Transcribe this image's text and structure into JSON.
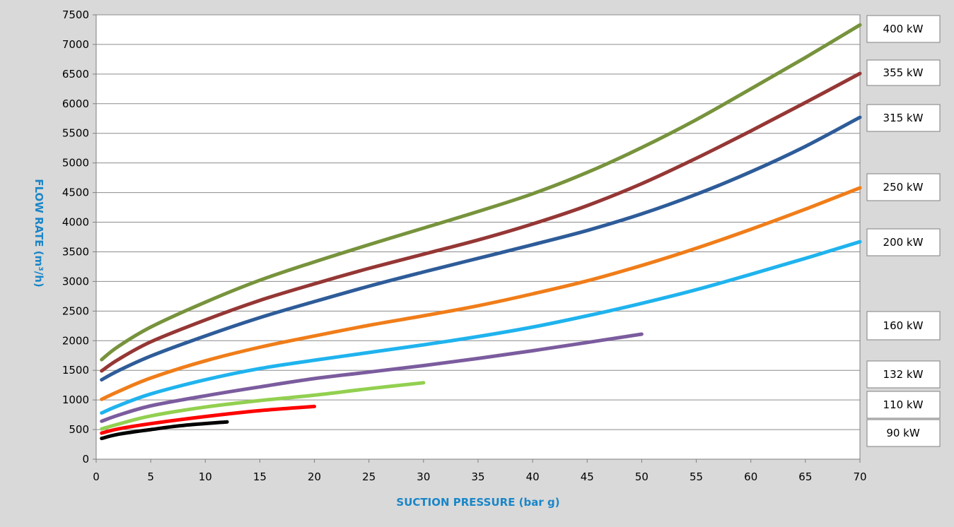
{
  "chart_data": {
    "type": "line",
    "title": "",
    "xlabel": "SUCTION PRESSURE (bar g)",
    "ylabel": "FLOW RATE (m³/h)",
    "xlim": [
      0,
      70
    ],
    "ylim": [
      0,
      7500
    ],
    "xticks": [
      0,
      5,
      10,
      15,
      20,
      25,
      30,
      35,
      40,
      45,
      50,
      55,
      60,
      65,
      70
    ],
    "yticks": [
      0,
      500,
      1000,
      1500,
      2000,
      2500,
      3000,
      3500,
      4000,
      4500,
      5000,
      5500,
      6000,
      6500,
      7000,
      7500
    ],
    "grid": "horizontal",
    "legend_position": "right",
    "series": [
      {
        "name": "400 kW",
        "color": "#77933c",
        "x": [
          0.5,
          2,
          5,
          10,
          15,
          20,
          25,
          30,
          35,
          40,
          45,
          50,
          55,
          60,
          65,
          70
        ],
        "y": [
          1680,
          1900,
          2230,
          2650,
          3020,
          3330,
          3620,
          3900,
          4180,
          4480,
          4840,
          5260,
          5730,
          6250,
          6780,
          7330
        ]
      },
      {
        "name": "355 kW",
        "color": "#953735",
        "x": [
          0.5,
          2,
          5,
          10,
          15,
          20,
          25,
          30,
          35,
          40,
          45,
          50,
          55,
          60,
          65,
          70
        ],
        "y": [
          1490,
          1680,
          1980,
          2350,
          2680,
          2960,
          3220,
          3460,
          3700,
          3970,
          4280,
          4650,
          5080,
          5540,
          6020,
          6510
        ]
      },
      {
        "name": "315 kW",
        "color": "#2e5c99",
        "x": [
          0.5,
          2,
          5,
          10,
          15,
          20,
          25,
          30,
          35,
          40,
          45,
          50,
          55,
          60,
          65,
          70
        ],
        "y": [
          1340,
          1490,
          1740,
          2080,
          2390,
          2660,
          2920,
          3160,
          3390,
          3620,
          3860,
          4140,
          4470,
          4850,
          5280,
          5770
        ]
      },
      {
        "name": "250 kW",
        "color": "#f07d19",
        "x": [
          0.5,
          2,
          5,
          10,
          15,
          20,
          25,
          30,
          35,
          40,
          45,
          50,
          55,
          60,
          65,
          70
        ],
        "y": [
          1010,
          1140,
          1370,
          1660,
          1890,
          2080,
          2260,
          2420,
          2590,
          2790,
          3010,
          3270,
          3560,
          3880,
          4220,
          4580
        ]
      },
      {
        "name": "200 kW",
        "color": "#1fb3ee",
        "x": [
          0.5,
          2,
          5,
          10,
          15,
          20,
          25,
          30,
          35,
          40,
          45,
          50,
          55,
          60,
          65,
          70
        ],
        "y": [
          780,
          900,
          1100,
          1340,
          1530,
          1670,
          1800,
          1930,
          2070,
          2230,
          2420,
          2630,
          2860,
          3120,
          3390,
          3670
        ]
      },
      {
        "name": "160 kW",
        "color": "#7b5c9e",
        "x": [
          0.5,
          2,
          5,
          10,
          15,
          20,
          25,
          30,
          35,
          40,
          45,
          50
        ],
        "y": [
          640,
          740,
          900,
          1070,
          1220,
          1360,
          1470,
          1580,
          1700,
          1830,
          1970,
          2110
        ]
      },
      {
        "name": "132 kW",
        "color": "#92d050",
        "x": [
          0.5,
          2,
          5,
          10,
          15,
          20,
          25,
          30
        ],
        "y": [
          510,
          590,
          730,
          880,
          990,
          1080,
          1190,
          1290
        ]
      },
      {
        "name": "110 kW",
        "color": "#ff0000",
        "x": [
          0.5,
          2,
          5,
          10,
          15,
          20
        ],
        "y": [
          440,
          510,
          600,
          720,
          820,
          890
        ]
      },
      {
        "name": "90 kW",
        "color": "#000000",
        "x": [
          0.5,
          2,
          5,
          8,
          12
        ],
        "y": [
          350,
          420,
          500,
          570,
          630
        ]
      }
    ]
  }
}
